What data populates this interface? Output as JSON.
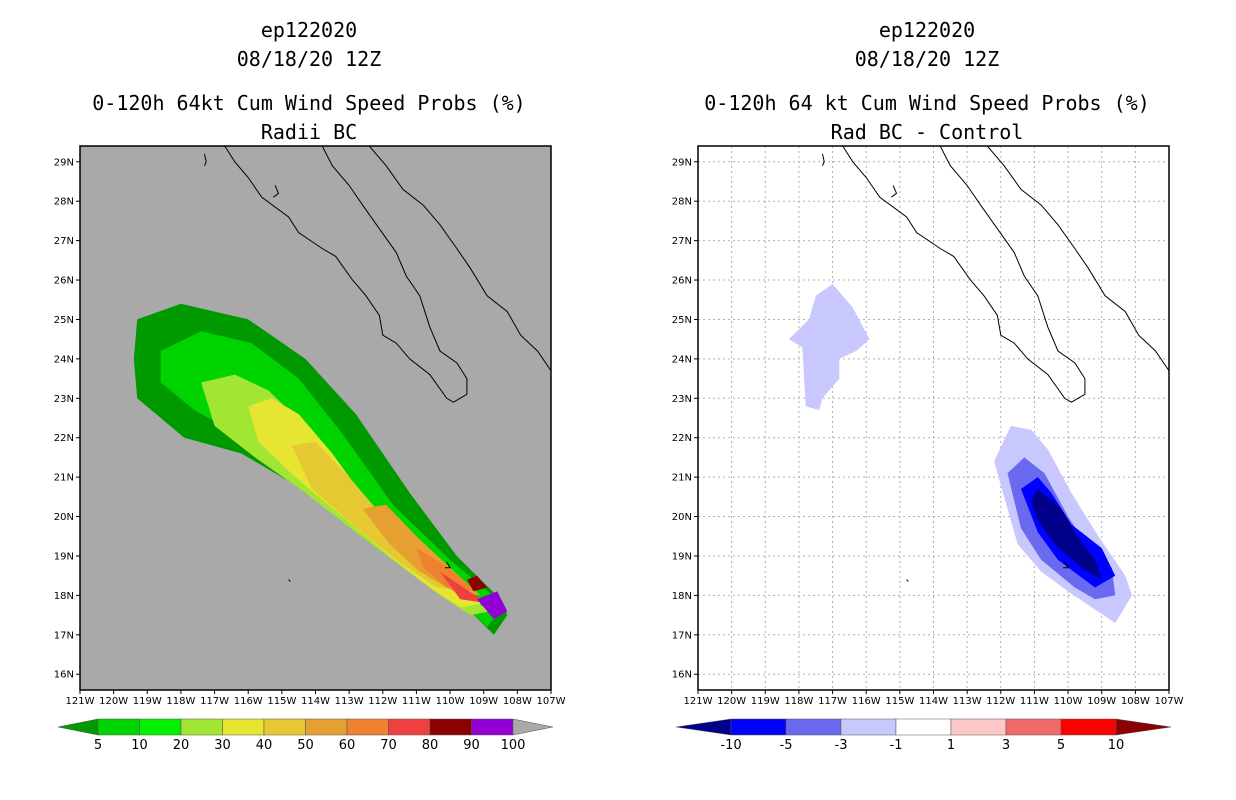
{
  "panels": [
    {
      "storm_id": "ep122020",
      "date": "08/18/20 12Z",
      "title": "0-120h 64kt Cum Wind Speed Probs (%)",
      "subtitle": "Radii BC",
      "background_color": "#a9a9a9",
      "chart_data": {
        "type": "filled-contour map",
        "xlabel": "",
        "ylabel": "",
        "x_ticks": [
          "121W",
          "120W",
          "119W",
          "118W",
          "117W",
          "116W",
          "115W",
          "114W",
          "113W",
          "112W",
          "111W",
          "110W",
          "109W",
          "108W",
          "107W"
        ],
        "y_ticks": [
          "16N",
          "17N",
          "18N",
          "19N",
          "20N",
          "21N",
          "22N",
          "23N",
          "24N",
          "25N",
          "26N",
          "27N",
          "28N",
          "29N"
        ],
        "lon_range": [
          -121,
          -107
        ],
        "lat_range": [
          15.6,
          29.4
        ],
        "grid": false,
        "colorbar": {
          "labels": [
            "5",
            "10",
            "20",
            "30",
            "40",
            "50",
            "60",
            "70",
            "80",
            "90",
            "100"
          ],
          "colors": [
            "#009a00",
            "#00d400",
            "#00f000",
            "#a0e632",
            "#e6e632",
            "#e6c832",
            "#e6a032",
            "#ee8230",
            "#ee4040",
            "#8b0000",
            "#9400d3",
            "#a9a9a9"
          ],
          "extend": "both"
        },
        "contours": [
          {
            "level": 5,
            "color": "#009a00",
            "polygon": [
              [
                -119.3,
                25.0
              ],
              [
                -118.0,
                25.4
              ],
              [
                -116.0,
                25.0
              ],
              [
                -114.3,
                24.0
              ],
              [
                -112.8,
                22.6
              ],
              [
                -111.2,
                20.6
              ],
              [
                -109.8,
                19.0
              ],
              [
                -108.5,
                17.9
              ],
              [
                -108.3,
                17.5
              ],
              [
                -108.7,
                17.0
              ],
              [
                -109.4,
                17.6
              ],
              [
                -110.4,
                18.2
              ],
              [
                -111.6,
                18.9
              ],
              [
                -113.0,
                19.8
              ],
              [
                -114.6,
                20.8
              ],
              [
                -116.2,
                21.6
              ],
              [
                -117.9,
                22.0
              ],
              [
                -119.3,
                23.0
              ],
              [
                -119.4,
                24.0
              ]
            ]
          },
          {
            "level": 10,
            "color": "#00d400",
            "polygon": [
              [
                -118.6,
                24.2
              ],
              [
                -117.4,
                24.7
              ],
              [
                -115.9,
                24.4
              ],
              [
                -114.5,
                23.5
              ],
              [
                -113.2,
                22.1
              ],
              [
                -111.7,
                20.3
              ],
              [
                -110.0,
                18.9
              ],
              [
                -108.6,
                17.9
              ],
              [
                -108.5,
                17.6
              ],
              [
                -108.9,
                17.2
              ],
              [
                -109.5,
                17.7
              ],
              [
                -110.5,
                18.3
              ],
              [
                -111.6,
                19.0
              ],
              [
                -113.0,
                19.9
              ],
              [
                -114.6,
                21.0
              ],
              [
                -116.1,
                22.0
              ],
              [
                -117.6,
                22.7
              ],
              [
                -118.6,
                23.4
              ]
            ]
          },
          {
            "level": 20,
            "color": "#a0e632",
            "polygon": [
              [
                -117.4,
                23.4
              ],
              [
                -116.4,
                23.6
              ],
              [
                -115.4,
                23.2
              ],
              [
                -114.2,
                22.2
              ],
              [
                -112.9,
                20.7
              ],
              [
                -111.3,
                19.2
              ],
              [
                -109.7,
                18.1
              ],
              [
                -108.8,
                17.6
              ],
              [
                -109.4,
                17.5
              ],
              [
                -110.3,
                18.0
              ],
              [
                -111.4,
                18.7
              ],
              [
                -112.8,
                19.6
              ],
              [
                -114.3,
                20.6
              ],
              [
                -115.8,
                21.5
              ],
              [
                -117.0,
                22.3
              ]
            ]
          },
          {
            "level": 30,
            "color": "#e6e632",
            "polygon": [
              [
                -116.0,
                22.8
              ],
              [
                -115.3,
                23.0
              ],
              [
                -114.5,
                22.6
              ],
              [
                -113.5,
                21.6
              ],
              [
                -112.4,
                20.3
              ],
              [
                -111.0,
                19.1
              ],
              [
                -109.7,
                18.2
              ],
              [
                -109.0,
                17.8
              ],
              [
                -109.7,
                17.7
              ],
              [
                -110.6,
                18.2
              ],
              [
                -111.8,
                19.0
              ],
              [
                -113.2,
                20.0
              ],
              [
                -114.6,
                21.0
              ],
              [
                -115.7,
                21.9
              ]
            ]
          },
          {
            "level": 40,
            "color": "#e6c832",
            "polygon": [
              [
                -114.7,
                21.8
              ],
              [
                -114.0,
                21.9
              ],
              [
                -113.0,
                21.0
              ],
              [
                -111.9,
                19.9
              ],
              [
                -110.6,
                18.9
              ],
              [
                -109.4,
                18.1
              ],
              [
                -110.4,
                18.2
              ],
              [
                -111.6,
                18.9
              ],
              [
                -112.9,
                19.8
              ],
              [
                -114.1,
                20.7
              ]
            ]
          },
          {
            "level": 50,
            "color": "#e6a032",
            "polygon": [
              [
                -112.6,
                20.2
              ],
              [
                -111.9,
                20.3
              ],
              [
                -111.0,
                19.5
              ],
              [
                -110.0,
                18.7
              ],
              [
                -109.1,
                18.0
              ],
              [
                -109.9,
                18.1
              ],
              [
                -110.9,
                18.6
              ],
              [
                -111.8,
                19.3
              ]
            ]
          },
          {
            "level": 60,
            "color": "#ee8230",
            "polygon": [
              [
                -111.0,
                19.2
              ],
              [
                -110.2,
                18.8
              ],
              [
                -109.2,
                18.1
              ],
              [
                -110.1,
                18.2
              ],
              [
                -110.8,
                18.7
              ]
            ]
          },
          {
            "level": 70,
            "color": "#ee4040",
            "polygon": [
              [
                -110.3,
                18.6
              ],
              [
                -109.6,
                18.2
              ],
              [
                -108.9,
                17.8
              ],
              [
                -109.7,
                17.9
              ]
            ]
          },
          {
            "level": 80,
            "color": "#8b0000",
            "polygon": [
              [
                -109.5,
                18.4
              ],
              [
                -109.2,
                18.5
              ],
              [
                -108.9,
                18.2
              ],
              [
                -109.3,
                18.1
              ]
            ]
          },
          {
            "level": 90,
            "color": "#9400d3",
            "polygon": [
              [
                -109.2,
                17.9
              ],
              [
                -108.6,
                18.1
              ],
              [
                -108.3,
                17.6
              ],
              [
                -108.7,
                17.4
              ]
            ]
          }
        ]
      }
    },
    {
      "storm_id": "ep122020",
      "date": "08/18/20 12Z",
      "title": "0-120h 64 kt Cum Wind Speed Probs (%)",
      "subtitle": "Rad BC - Control",
      "background_color": "#ffffff",
      "chart_data": {
        "type": "filled-contour map",
        "xlabel": "",
        "ylabel": "",
        "x_ticks": [
          "121W",
          "120W",
          "119W",
          "118W",
          "117W",
          "116W",
          "115W",
          "114W",
          "113W",
          "112W",
          "111W",
          "110W",
          "109W",
          "108W",
          "107W"
        ],
        "y_ticks": [
          "16N",
          "17N",
          "18N",
          "19N",
          "20N",
          "21N",
          "22N",
          "23N",
          "24N",
          "25N",
          "26N",
          "27N",
          "28N",
          "29N"
        ],
        "lon_range": [
          -121,
          -107
        ],
        "lat_range": [
          15.6,
          29.4
        ],
        "grid": true,
        "colorbar": {
          "labels": [
            "-10",
            "-5",
            "-3",
            "-1",
            "1",
            "3",
            "5",
            "10"
          ],
          "colors": [
            "#00008b",
            "#0000ff",
            "#6a6af0",
            "#c8c8ff",
            "#ffffff",
            "#ffc8c8",
            "#f06a6a",
            "#ff0000",
            "#8b0000"
          ],
          "extend": "both"
        },
        "contours": [
          {
            "level": -1,
            "color": "#c8c8ff",
            "polygon": [
              [
                -117.5,
                25.6
              ],
              [
                -117.0,
                25.9
              ],
              [
                -116.4,
                25.3
              ],
              [
                -115.9,
                24.5
              ],
              [
                -116.3,
                24.2
              ],
              [
                -116.8,
                24.0
              ],
              [
                -116.8,
                23.5
              ],
              [
                -117.3,
                23.0
              ],
              [
                -117.4,
                22.7
              ],
              [
                -117.8,
                22.8
              ],
              [
                -117.9,
                24.3
              ],
              [
                -118.3,
                24.5
              ],
              [
                -117.7,
                25.0
              ]
            ]
          },
          {
            "level": -1,
            "color": "#c8c8ff",
            "polygon": [
              [
                -112.2,
                21.4
              ],
              [
                -111.7,
                22.3
              ],
              [
                -111.1,
                22.2
              ],
              [
                -110.6,
                21.7
              ],
              [
                -109.9,
                20.6
              ],
              [
                -109.1,
                19.5
              ],
              [
                -108.3,
                18.5
              ],
              [
                -108.1,
                18.0
              ],
              [
                -108.6,
                17.3
              ],
              [
                -109.3,
                17.7
              ],
              [
                -110.0,
                18.1
              ],
              [
                -110.8,
                18.6
              ],
              [
                -111.5,
                19.3
              ],
              [
                -111.8,
                20.2
              ]
            ]
          },
          {
            "level": -3,
            "color": "#6a6af0",
            "polygon": [
              [
                -111.8,
                21.1
              ],
              [
                -111.3,
                21.5
              ],
              [
                -110.7,
                21.1
              ],
              [
                -110.0,
                20.0
              ],
              [
                -109.4,
                19.2
              ],
              [
                -108.7,
                18.7
              ],
              [
                -108.6,
                18.0
              ],
              [
                -109.2,
                17.9
              ],
              [
                -109.8,
                18.2
              ],
              [
                -110.8,
                18.9
              ],
              [
                -111.4,
                19.7
              ]
            ]
          },
          {
            "level": -5,
            "color": "#0000ff",
            "polygon": [
              [
                -111.4,
                20.7
              ],
              [
                -110.9,
                21.0
              ],
              [
                -110.5,
                20.6
              ],
              [
                -109.9,
                19.8
              ],
              [
                -109.0,
                19.2
              ],
              [
                -108.6,
                18.5
              ],
              [
                -109.2,
                18.2
              ],
              [
                -110.3,
                18.9
              ],
              [
                -110.9,
                19.6
              ]
            ]
          },
          {
            "level": -10,
            "color": "#00008b",
            "polygon": [
              [
                -111.1,
                20.4
              ],
              [
                -110.9,
                20.7
              ],
              [
                -110.2,
                20.2
              ],
              [
                -109.8,
                19.6
              ],
              [
                -109.2,
                18.9
              ],
              [
                -109.0,
                18.4
              ],
              [
                -109.6,
                18.7
              ],
              [
                -110.4,
                19.3
              ],
              [
                -110.9,
                19.9
              ]
            ]
          }
        ]
      }
    }
  ]
}
